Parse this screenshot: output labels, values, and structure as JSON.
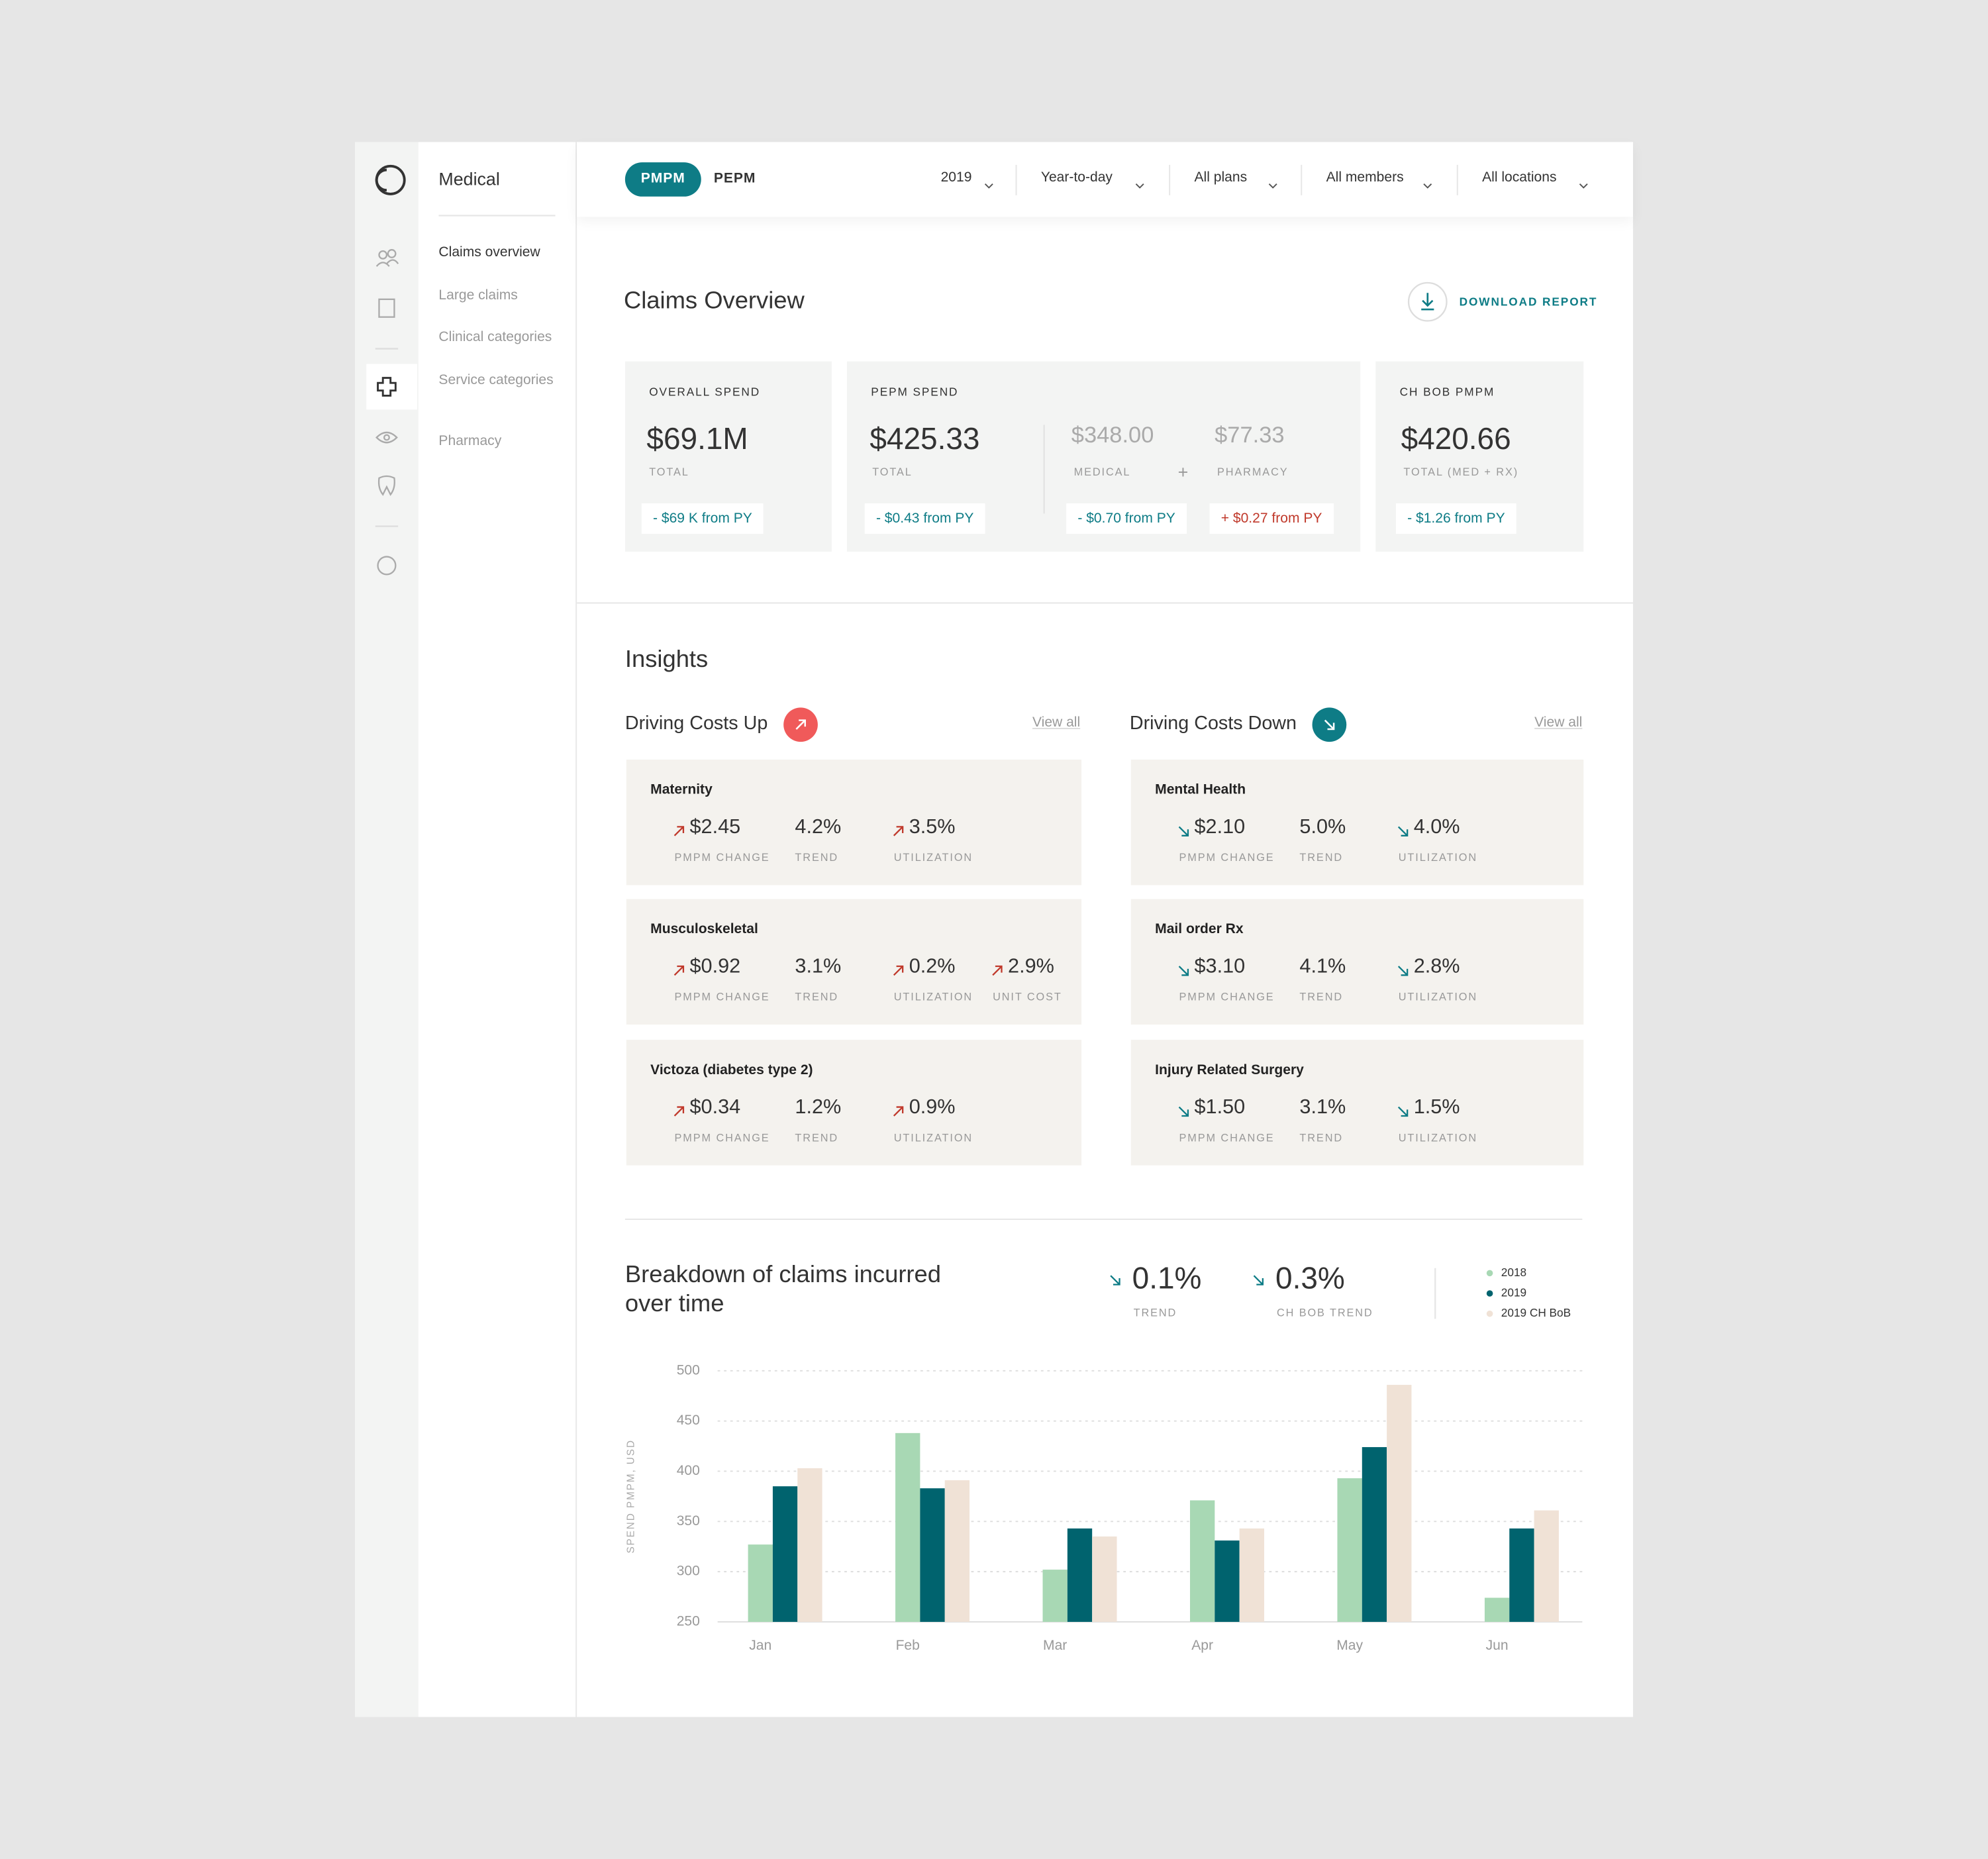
{
  "sidebar": {
    "title": "Medical",
    "items": [
      "Claims overview",
      "Large claims",
      "Clinical categories",
      "Service categories",
      "Pharmacy"
    ]
  },
  "topbar": {
    "toggle": [
      "PMPM",
      "PEPM"
    ],
    "filters": [
      "2019",
      "Year-to-day",
      "All plans",
      "All members",
      "All locations"
    ]
  },
  "overview": {
    "title": "Claims Overview",
    "action": "DOWNLOAD REPORT",
    "cards": [
      {
        "label": "OVERALL SPEND",
        "metrics": [
          {
            "value": "$69.1M",
            "label": "TOTAL",
            "change": "- $69 K from PY"
          }
        ]
      },
      {
        "label": "PEPM SPEND",
        "operator": "+",
        "metrics": [
          {
            "value": "$425.33",
            "label": "TOTAL",
            "change": "- $0.43 from PY"
          },
          {
            "value": "$348.00",
            "label": "MEDICAL",
            "change": "- $0.70 from PY"
          },
          {
            "value": "$77.33",
            "label": "PHARMACY",
            "change": "+ $0.27 from PY"
          }
        ]
      },
      {
        "label": "CH BOB PMPM",
        "metrics": [
          {
            "value": "$420.66",
            "label": "TOTAL (MED + RX)",
            "change": "- $1.26 from PY"
          }
        ]
      }
    ]
  },
  "insights": {
    "title": "Insights",
    "groups": [
      {
        "title": "Driving Costs Up",
        "link": "View all",
        "items": [
          {
            "name": "Maternity",
            "metrics": [
              {
                "value": "$2.45",
                "label": "PMPM CHANGE"
              },
              {
                "value": "4.2%",
                "label": "TREND"
              },
              {
                "value": "3.5%",
                "label": "UTILIZATION"
              }
            ]
          },
          {
            "name": "Musculoskeletal",
            "metrics": [
              {
                "value": "$0.92",
                "label": "PMPM CHANGE"
              },
              {
                "value": "3.1%",
                "label": "TREND"
              },
              {
                "value": "0.2%",
                "label": "UTILIZATION"
              },
              {
                "value": "2.9%",
                "label": "UNIT COST"
              }
            ]
          },
          {
            "name": "Victoza (diabetes type 2)",
            "metrics": [
              {
                "value": "$0.34",
                "label": "PMPM CHANGE"
              },
              {
                "value": "1.2%",
                "label": "TREND"
              },
              {
                "value": "0.9%",
                "label": "UTILIZATION"
              }
            ]
          }
        ]
      },
      {
        "title": "Driving Costs Down",
        "link": "View all",
        "items": [
          {
            "name": "Mental Health",
            "metrics": [
              {
                "value": "$2.10",
                "label": "PMPM CHANGE"
              },
              {
                "value": "5.0%",
                "label": "TREND"
              },
              {
                "value": "4.0%",
                "label": "UTILIZATION"
              }
            ]
          },
          {
            "name": "Mail order Rx",
            "metrics": [
              {
                "value": "$3.10",
                "label": "PMPM CHANGE"
              },
              {
                "value": "4.1%",
                "label": "TREND"
              },
              {
                "value": "2.8%",
                "label": "UTILIZATION"
              }
            ]
          },
          {
            "name": "Injury Related Surgery",
            "metrics": [
              {
                "value": "$1.50",
                "label": "PMPM CHANGE"
              },
              {
                "value": "3.1%",
                "label": "TREND"
              },
              {
                "value": "1.5%",
                "label": "UTILIZATION"
              }
            ]
          }
        ]
      }
    ]
  },
  "chart_data": {
    "type": "bar",
    "title": "Breakdown of claims incurred over time",
    "y_label": "SPEND PMPM, USD",
    "stats": [
      {
        "value": "0.1%",
        "label": "TREND"
      },
      {
        "value": "0.3%",
        "label": "CH BOB TREND"
      }
    ],
    "categories": [
      "Jan",
      "Feb",
      "Mar",
      "Apr",
      "May",
      "Jun"
    ],
    "series": [
      {
        "name": "2018",
        "color": "#a8d8b4",
        "values": [
          327,
          438,
          302,
          371,
          393,
          274
        ]
      },
      {
        "name": "2019",
        "color": "#00636e",
        "values": [
          385,
          383,
          343,
          331,
          424,
          343
        ]
      },
      {
        "name": "2019 CH BoB",
        "color": "#f0e2d6",
        "values": [
          403,
          391,
          335,
          343,
          486,
          361
        ]
      }
    ],
    "ylim": [
      250,
      500
    ],
    "yticks": [
      250,
      300,
      350,
      400,
      450,
      500
    ],
    "grid": true,
    "legend": "top-right"
  }
}
